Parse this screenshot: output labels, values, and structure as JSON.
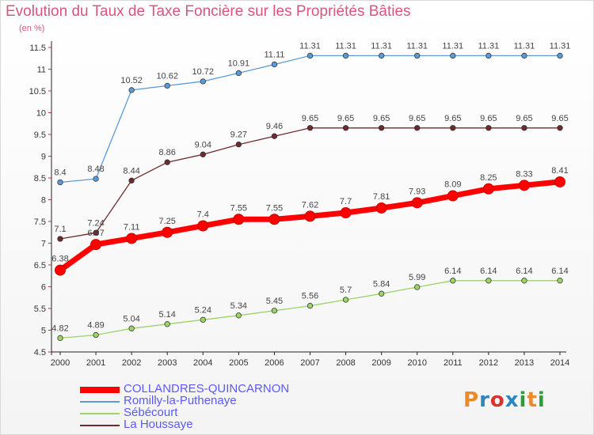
{
  "header": {
    "title": "Evolution du Taux de Taxe Foncière sur les Propriétés Bâties",
    "unit": "(en %)"
  },
  "logo": {
    "text": "Proxiti",
    "colors": [
      "#e88a2e",
      "#2e86c1",
      "#d8342c",
      "#2e86c1",
      "#2e9c3a",
      "#e88a2e",
      "#2e9c3a"
    ]
  },
  "chart_data": {
    "type": "line",
    "x": [
      "2000",
      "2001",
      "2002",
      "2003",
      "2004",
      "2005",
      "2006",
      "2007",
      "2008",
      "2009",
      "2010",
      "2011",
      "2012",
      "2013",
      "2014"
    ],
    "ylim": [
      4.5,
      11.5
    ],
    "yticks": [
      "4.5",
      "5",
      "5.5",
      "6",
      "6.5",
      "7",
      "7.5",
      "8",
      "8.5",
      "9",
      "9.5",
      "10",
      "10.5",
      "11",
      "11.5"
    ],
    "grid": false,
    "legend_position": "bottom-left",
    "series": [
      {
        "name": "Romilly-la-Puthenaye",
        "color": "#5b9bd5",
        "values": [
          8.4,
          8.48,
          10.52,
          10.62,
          10.72,
          10.91,
          11.11,
          11.31,
          11.31,
          11.31,
          11.31,
          11.31,
          11.31,
          11.31,
          11.31
        ],
        "labels": [
          "8.4",
          "8.48",
          "10.52",
          "10.62",
          "10.72",
          "10.91",
          "11.11",
          "11.31",
          "11.31",
          "11.31",
          "11.31",
          "11.31",
          "11.31",
          "11.31",
          "11.31"
        ]
      },
      {
        "name": "La Houssaye",
        "color": "#6d2a2f",
        "values": [
          7.1,
          7.24,
          8.44,
          8.86,
          9.04,
          9.27,
          9.46,
          9.65,
          9.65,
          9.65,
          9.65,
          9.65,
          9.65,
          9.65,
          9.65
        ],
        "labels": [
          "7.1",
          "7.24",
          "8.44",
          "8.86",
          "9.04",
          "9.27",
          "9.46",
          "9.65",
          "9.65",
          "9.65",
          "9.65",
          "9.65",
          "9.65",
          "9.65",
          "9.65"
        ]
      },
      {
        "name": "Sébécourt",
        "color": "#9bd36a",
        "values": [
          4.82,
          4.89,
          5.04,
          5.14,
          5.24,
          5.34,
          5.45,
          5.56,
          5.7,
          5.84,
          5.99,
          6.14,
          6.14,
          6.14,
          6.14
        ],
        "labels": [
          "4.82",
          "4.89",
          "5.04",
          "5.14",
          "5.24",
          "5.34",
          "5.45",
          "5.56",
          "5.7",
          "5.84",
          "5.99",
          "6.14",
          "6.14",
          "6.14",
          "6.14"
        ]
      },
      {
        "name": "COLLANDRES-QUINCARNON",
        "color": "#ff0000",
        "values": [
          6.38,
          6.97,
          7.11,
          7.25,
          7.4,
          7.55,
          7.55,
          7.62,
          7.7,
          7.81,
          7.93,
          8.09,
          8.25,
          8.33,
          8.41
        ],
        "labels": [
          "6.38",
          "6.97",
          "7.11",
          "7.25",
          "7.4",
          "7.55",
          "7.55",
          "7.62",
          "7.7",
          "7.81",
          "7.93",
          "8.09",
          "8.25",
          "8.33",
          "8.41"
        ]
      }
    ],
    "legend_order": [
      "COLLANDRES-QUINCARNON",
      "Romilly-la-Puthenaye",
      "Sébécourt",
      "La Houssaye"
    ]
  }
}
